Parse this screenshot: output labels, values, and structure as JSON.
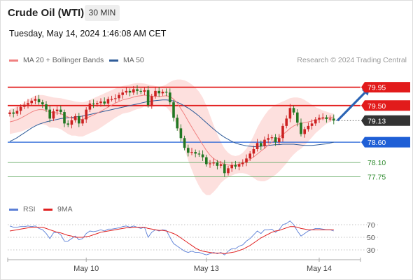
{
  "header": {
    "title": "Crude Oil (WTI)",
    "timeframe": "30 MIN",
    "datetime": "Tuesday, May 14, 2024 1:46:08 AM CET"
  },
  "legend": {
    "ma20": "MA 20 + Bollinger Bands",
    "ma50": "MA 50",
    "copyright": "Research © 2024 Trading Central"
  },
  "rsi_legend": {
    "rsi": "RSI",
    "ma": "9MA"
  },
  "colors": {
    "resistance": "#e21b1b",
    "support": "#1f5fd6",
    "minor_support": "#6fb06f",
    "ma20": "#f08080",
    "ma50": "#2f5c99",
    "bull": "#cc2222",
    "bear": "#227722",
    "bands": "#fde0de",
    "arrow": "#2b64b5",
    "current": "#333333"
  },
  "chart_data": {
    "type": "candlestick",
    "price_min": 77.45,
    "price_max": 80.15,
    "levels": [
      {
        "value": 79.95,
        "label": "79.95",
        "kind": "resistance"
      },
      {
        "value": 79.5,
        "label": "79.50",
        "kind": "resistance"
      },
      {
        "value": 79.13,
        "label": "79.13",
        "kind": "current"
      },
      {
        "value": 78.6,
        "label": "78.60",
        "kind": "support"
      },
      {
        "value": 78.1,
        "label": "78.10",
        "kind": "minor"
      },
      {
        "value": 77.75,
        "label": "77.75",
        "kind": "minor"
      }
    ],
    "x_labels": [
      {
        "label": "May 10",
        "index": 21
      },
      {
        "label": "May 13",
        "index": 54
      },
      {
        "label": "May 14",
        "index": 85
      }
    ],
    "arrow": {
      "from_index": 90,
      "from": 79.13,
      "to_index": 99,
      "to": 79.95
    },
    "closes": [
      79.33,
      79.3,
      79.37,
      79.47,
      79.52,
      79.56,
      79.62,
      79.66,
      79.58,
      79.53,
      79.4,
      79.18,
      79.36,
      79.4,
      79.34,
      79.06,
      79.03,
      79.14,
      79.24,
      79.06,
      79.16,
      79.4,
      79.55,
      79.53,
      79.56,
      79.6,
      79.55,
      79.66,
      79.66,
      79.68,
      79.76,
      79.82,
      79.86,
      79.82,
      79.9,
      79.86,
      79.84,
      79.88,
      79.51,
      79.73,
      79.86,
      79.8,
      79.84,
      79.82,
      79.58,
      79.2,
      78.94,
      78.7,
      78.46,
      78.34,
      78.36,
      78.32,
      78.3,
      78.23,
      78.06,
      78.08,
      78.1,
      78.02,
      78.06,
      77.84,
      77.96,
      78.04,
      78.0,
      78.06,
      78.1,
      78.2,
      78.32,
      78.43,
      78.58,
      78.5,
      78.66,
      78.7,
      78.72,
      78.6,
      78.7,
      79.0,
      79.18,
      79.44,
      79.33,
      79.08,
      78.8,
      78.92,
      79.0,
      79.06,
      79.16,
      79.2,
      79.21,
      79.17,
      79.18,
      79.13
    ],
    "ma20": [
      79.1,
      79.12,
      79.15,
      79.19,
      79.24,
      79.29,
      79.34,
      79.38,
      79.4,
      79.4,
      79.38,
      79.34,
      79.33,
      79.32,
      79.3,
      79.26,
      79.22,
      79.19,
      79.18,
      79.16,
      79.16,
      79.19,
      79.23,
      79.27,
      79.31,
      79.36,
      79.41,
      79.46,
      79.51,
      79.56,
      79.6,
      79.64,
      79.66,
      79.68,
      79.71,
      79.73,
      79.74,
      79.76,
      79.74,
      79.73,
      79.73,
      79.72,
      79.73,
      79.74,
      79.72,
      79.66,
      79.56,
      79.42,
      79.28,
      79.12,
      78.97,
      78.82,
      78.68,
      78.54,
      78.4,
      78.28,
      78.2,
      78.14,
      78.1,
      78.06,
      78.04,
      78.03,
      78.04,
      78.06,
      78.09,
      78.13,
      78.18,
      78.24,
      78.31,
      78.38,
      78.45,
      78.53,
      78.6,
      78.66,
      78.72,
      78.79,
      78.86,
      78.94,
      79.0,
      79.04,
      79.06,
      79.08,
      79.1,
      79.12,
      79.14,
      79.16,
      79.18,
      79.2,
      79.21,
      79.22
    ],
    "ma50": [
      78.62,
      78.66,
      78.71,
      78.77,
      78.83,
      78.89,
      78.95,
      79.0,
      79.04,
      79.07,
      79.1,
      79.12,
      79.14,
      79.16,
      79.18,
      79.19,
      79.2,
      79.21,
      79.22,
      79.23,
      79.24,
      79.26,
      79.28,
      79.3,
      79.32,
      79.34,
      79.36,
      79.38,
      79.4,
      79.42,
      79.44,
      79.46,
      79.48,
      79.5,
      79.52,
      79.54,
      79.56,
      79.58,
      79.6,
      79.61,
      79.62,
      79.63,
      79.64,
      79.64,
      79.63,
      79.61,
      79.58,
      79.54,
      79.49,
      79.44,
      79.38,
      79.31,
      79.24,
      79.16,
      79.08,
      79.0,
      78.92,
      78.85,
      78.78,
      78.72,
      78.67,
      78.62,
      78.58,
      78.55,
      78.53,
      78.51,
      78.5,
      78.49,
      78.49,
      78.5,
      78.51,
      78.52,
      78.53,
      78.54,
      78.54,
      78.55,
      78.55,
      78.55,
      78.55,
      78.54,
      78.53,
      78.52,
      78.52,
      78.52,
      78.53,
      78.54,
      78.55,
      78.56,
      78.58,
      78.6
    ],
    "bb_upper": [
      79.42,
      79.44,
      79.47,
      79.52,
      79.58,
      79.64,
      79.7,
      79.74,
      79.76,
      79.76,
      79.74,
      79.72,
      79.7,
      79.69,
      79.68,
      79.66,
      79.64,
      79.62,
      79.6,
      79.59,
      79.58,
      79.6,
      79.64,
      79.68,
      79.72,
      79.76,
      79.8,
      79.84,
      79.88,
      79.92,
      79.95,
      79.98,
      80.0,
      80.02,
      80.04,
      80.05,
      80.05,
      80.04,
      80.02,
      80.0,
      79.98,
      79.96,
      79.98,
      80.02,
      80.08,
      80.12,
      80.14,
      80.14,
      80.12,
      80.08,
      80.02,
      79.94,
      79.84,
      79.7,
      79.5,
      79.26,
      79.02,
      78.8,
      78.6,
      78.44,
      78.34,
      78.28,
      78.26,
      78.28,
      78.34,
      78.44,
      78.58,
      78.76,
      78.96,
      79.12,
      79.26,
      79.38,
      79.46,
      79.52,
      79.56,
      79.6,
      79.64,
      79.68,
      79.7,
      79.7,
      79.68,
      79.64,
      79.58,
      79.52,
      79.46,
      79.42,
      79.38,
      79.35,
      79.32,
      79.3
    ],
    "bb_lower": [
      78.8,
      78.82,
      78.84,
      78.86,
      78.89,
      78.93,
      78.97,
      79.01,
      79.04,
      79.04,
      79.02,
      78.96,
      78.96,
      78.95,
      78.92,
      78.86,
      78.8,
      78.76,
      78.76,
      78.74,
      78.74,
      78.78,
      78.82,
      78.86,
      78.9,
      78.96,
      79.02,
      79.08,
      79.14,
      79.2,
      79.25,
      79.3,
      79.32,
      79.34,
      79.38,
      79.41,
      79.43,
      79.48,
      79.46,
      79.46,
      79.48,
      79.48,
      79.48,
      79.46,
      79.36,
      79.2,
      78.98,
      78.7,
      78.44,
      78.16,
      77.92,
      77.7,
      77.52,
      77.38,
      77.3,
      77.3,
      77.38,
      77.48,
      77.6,
      77.68,
      77.74,
      77.78,
      77.82,
      77.84,
      77.84,
      77.82,
      77.78,
      77.72,
      77.66,
      77.64,
      77.64,
      77.68,
      77.74,
      77.8,
      77.88,
      77.98,
      78.08,
      78.2,
      78.3,
      78.38,
      78.44,
      78.52,
      78.62,
      78.72,
      78.82,
      78.9,
      78.98,
      79.05,
      79.1,
      79.14
    ],
    "rsi": {
      "min": 20,
      "max": 80,
      "ticks": [
        70,
        50,
        30
      ],
      "rsi": [
        68,
        66,
        66,
        67,
        67,
        68,
        67,
        68,
        64,
        62,
        56,
        48,
        57,
        58,
        54,
        44,
        44,
        48,
        52,
        46,
        48,
        56,
        60,
        59,
        60,
        62,
        60,
        63,
        63,
        64,
        65,
        67,
        68,
        66,
        68,
        66,
        64,
        66,
        50,
        58,
        62,
        60,
        62,
        61,
        50,
        40,
        36,
        32,
        28,
        26,
        28,
        26,
        26,
        24,
        22,
        24,
        26,
        24,
        26,
        22,
        28,
        32,
        32,
        36,
        38,
        44,
        48,
        54,
        60,
        56,
        62,
        62,
        63,
        58,
        62,
        70,
        72,
        76,
        70,
        60,
        52,
        56,
        60,
        62,
        64,
        64,
        63,
        62,
        62,
        60
      ],
      "ma": [
        60,
        61,
        62,
        63,
        64,
        65,
        66,
        66,
        66,
        66,
        64,
        62,
        60,
        58,
        57,
        55,
        53,
        52,
        50,
        50,
        50,
        51,
        52,
        54,
        56,
        58,
        59,
        60,
        61,
        62,
        63,
        64,
        65,
        65,
        66,
        66,
        66,
        66,
        64,
        63,
        62,
        61,
        61,
        60,
        58,
        56,
        53,
        49,
        45,
        41,
        37,
        33,
        30,
        28,
        27,
        26,
        25,
        25,
        25,
        24,
        25,
        26,
        27,
        29,
        31,
        34,
        37,
        41,
        45,
        49,
        52,
        55,
        58,
        60,
        61,
        63,
        65,
        67,
        67,
        66,
        64,
        63,
        62,
        62,
        62,
        62,
        62,
        62,
        62,
        62
      ]
    }
  }
}
